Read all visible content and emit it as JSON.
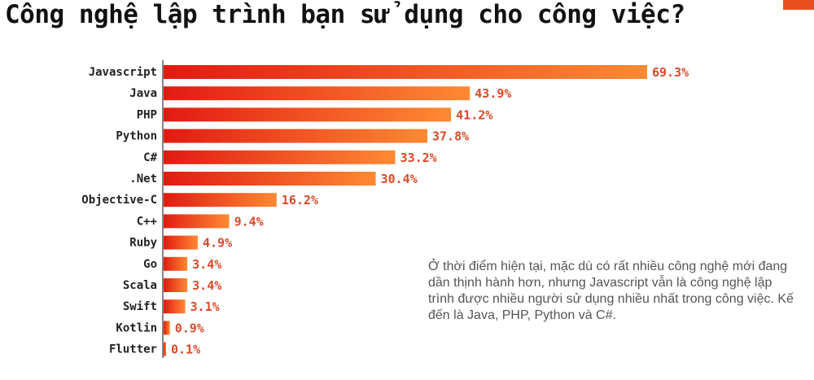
{
  "title": "Công nghệ lập trình bạn sử dụng cho công việc?",
  "note": "Ở thời điểm hiện tại, mặc dù có rất nhiều công nghệ mới đang dần thịnh hành hơn, nhưng Javascript vẫn là công nghệ lập trình được nhiều người sử dụng nhiều nhất trong công việc. Kế đến là Java, PHP, Python và C#.",
  "colors": {
    "bar_start": "#e21a12",
    "bar_end": "#ff8a33",
    "value_text": "#d94a2a",
    "badge": "#e8501e"
  },
  "chart_data": {
    "type": "bar",
    "orientation": "horizontal",
    "categories": [
      "Javascript",
      "Java",
      "PHP",
      "Python",
      "C#",
      ".Net",
      "Objective-C",
      "C++",
      "Ruby",
      "Go",
      "Scala",
      "Swift",
      "Kotlin",
      "Flutter"
    ],
    "values": [
      69.3,
      43.9,
      41.2,
      37.8,
      33.2,
      30.4,
      16.2,
      9.4,
      4.9,
      3.4,
      3.4,
      3.1,
      0.9,
      0.1
    ],
    "value_labels": [
      "69.3%",
      "43.9%",
      "41.2%",
      "37.8%",
      "33.2%",
      "30.4%",
      "16.2%",
      "9.4%",
      "4.9%",
      "3.4%",
      "3.4%",
      "3.1%",
      "0.9%",
      "0.1%"
    ],
    "xlim": [
      0,
      70
    ],
    "grid": false,
    "legend": "none"
  }
}
